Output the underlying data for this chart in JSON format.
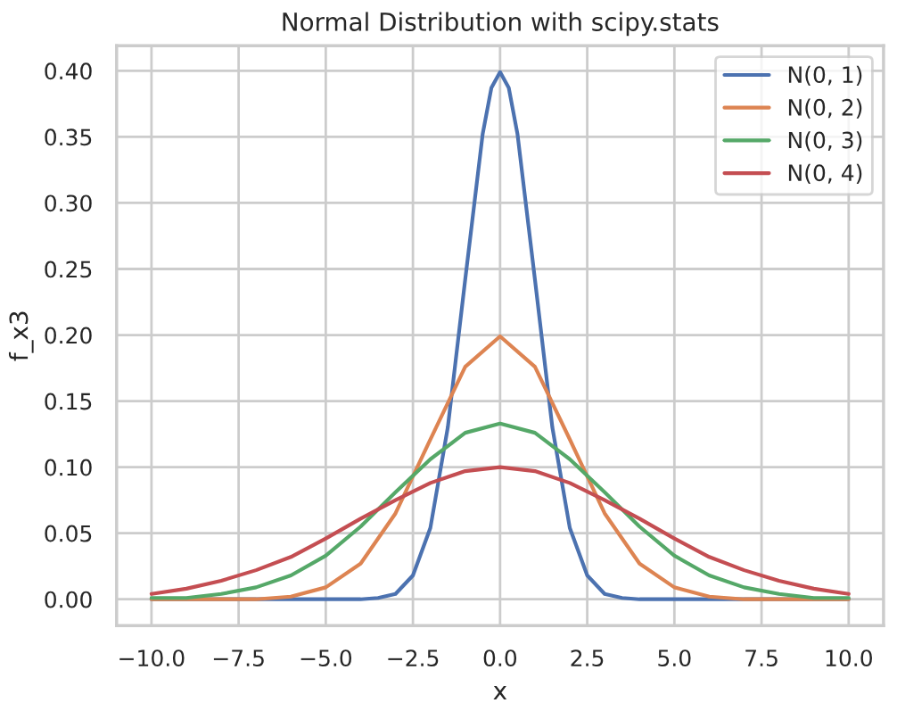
{
  "chart_data": {
    "type": "line",
    "title": "Normal Distribution with scipy.stats",
    "xlabel": "x",
    "ylabel": "f_x3",
    "xlim": [
      -11,
      11
    ],
    "xticks": [
      {
        "value": -10,
        "label": "−10.0"
      },
      {
        "value": -7.5,
        "label": "−7.5"
      },
      {
        "value": -5,
        "label": "−5.0"
      },
      {
        "value": -2.5,
        "label": "−2.5"
      },
      {
        "value": 0,
        "label": "0.0"
      },
      {
        "value": 2.5,
        "label": "2.5"
      },
      {
        "value": 5,
        "label": "5.0"
      },
      {
        "value": 7.5,
        "label": "7.5"
      },
      {
        "value": 10,
        "label": "10.0"
      }
    ],
    "ylim": [
      -0.02,
      0.419
    ],
    "yticks": [
      {
        "value": 0,
        "label": "0.00"
      },
      {
        "value": 0.05,
        "label": "0.05"
      },
      {
        "value": 0.1,
        "label": "0.10"
      },
      {
        "value": 0.15,
        "label": "0.15"
      },
      {
        "value": 0.2,
        "label": "0.20"
      },
      {
        "value": 0.25,
        "label": "0.25"
      },
      {
        "value": 0.3,
        "label": "0.30"
      },
      {
        "value": 0.35,
        "label": "0.35"
      },
      {
        "value": 0.4,
        "label": "0.40"
      }
    ],
    "grid": true,
    "legend": "top right",
    "marker": "none",
    "line_style": "solid",
    "series": [
      {
        "name": "N(0, 1)",
        "color": "#4c72b0",
        "x": [
          -10,
          -5,
          -4,
          -3.5,
          -3,
          -2.5,
          -2,
          -1.5,
          -1,
          -0.5,
          -0.25,
          0,
          0.25,
          0.5,
          1,
          1.5,
          2,
          2.5,
          3,
          3.5,
          4,
          5,
          10
        ],
        "values": [
          0,
          0,
          0,
          0.001,
          0.004,
          0.018,
          0.054,
          0.13,
          0.242,
          0.352,
          0.387,
          0.399,
          0.387,
          0.352,
          0.242,
          0.13,
          0.054,
          0.018,
          0.004,
          0.001,
          0,
          0,
          0
        ]
      },
      {
        "name": "N(0, 2)",
        "color": "#dd8452",
        "x": [
          -10,
          -9,
          -8,
          -7,
          -6,
          -5,
          -4,
          -3,
          -2,
          -1,
          0,
          1,
          2,
          3,
          4,
          5,
          6,
          7,
          8,
          9,
          10
        ],
        "values": [
          0,
          0,
          0,
          0,
          0.002,
          0.009,
          0.027,
          0.065,
          0.121,
          0.176,
          0.199,
          0.176,
          0.121,
          0.065,
          0.027,
          0.009,
          0.002,
          0,
          0,
          0,
          0
        ]
      },
      {
        "name": "N(0, 3)",
        "color": "#55a868",
        "x": [
          -10,
          -9,
          -8,
          -7,
          -6,
          -5,
          -4,
          -3,
          -2,
          -1,
          0,
          1,
          2,
          3,
          4,
          5,
          6,
          7,
          8,
          9,
          10
        ],
        "values": [
          0.001,
          0.001,
          0.004,
          0.009,
          0.018,
          0.033,
          0.055,
          0.081,
          0.106,
          0.126,
          0.133,
          0.126,
          0.106,
          0.081,
          0.055,
          0.033,
          0.018,
          0.009,
          0.004,
          0.001,
          0.001
        ]
      },
      {
        "name": "N(0, 4)",
        "color": "#c44e52",
        "x": [
          -10,
          -9,
          -8,
          -7,
          -6,
          -5,
          -4,
          -3,
          -2,
          -1,
          0,
          1,
          2,
          3,
          4,
          5,
          6,
          7,
          8,
          9,
          10
        ],
        "values": [
          0.004,
          0.008,
          0.014,
          0.022,
          0.032,
          0.046,
          0.061,
          0.075,
          0.088,
          0.097,
          0.1,
          0.097,
          0.088,
          0.075,
          0.061,
          0.046,
          0.032,
          0.022,
          0.014,
          0.008,
          0.004
        ]
      }
    ]
  }
}
